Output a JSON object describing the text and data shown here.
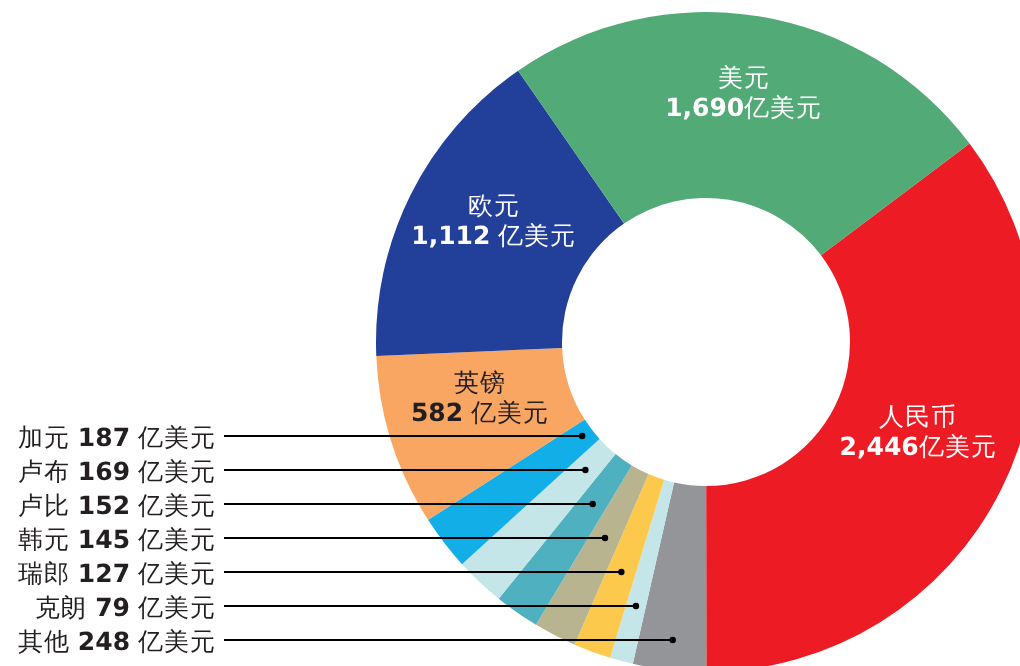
{
  "chart_data": {
    "type": "donut",
    "categories": [
      "人民币",
      "其他",
      "克朗",
      "瑞郎",
      "韩元",
      "卢比",
      "卢布",
      "加元",
      "英镑",
      "欧元",
      "美元"
    ],
    "values": [
      2446,
      248,
      79,
      127,
      145,
      152,
      169,
      187,
      582,
      1112,
      1690
    ],
    "value_labels": [
      "2,446亿美元",
      "248 亿美元",
      "79 亿美元",
      "127 亿美元",
      "145 亿美元",
      "152 亿美元",
      "169 亿美元",
      "187 亿美元",
      "582 亿美元",
      "1,112 亿美元",
      "1,690亿美元"
    ],
    "colors": [
      "#ed1c24",
      "#939598",
      "#c5e6e8",
      "#fdc94d",
      "#b8b48f",
      "#4fb0bf",
      "#c5e6e8",
      "#12aee8",
      "#f9a662",
      "#223f99",
      "#52aa76"
    ]
  }
}
